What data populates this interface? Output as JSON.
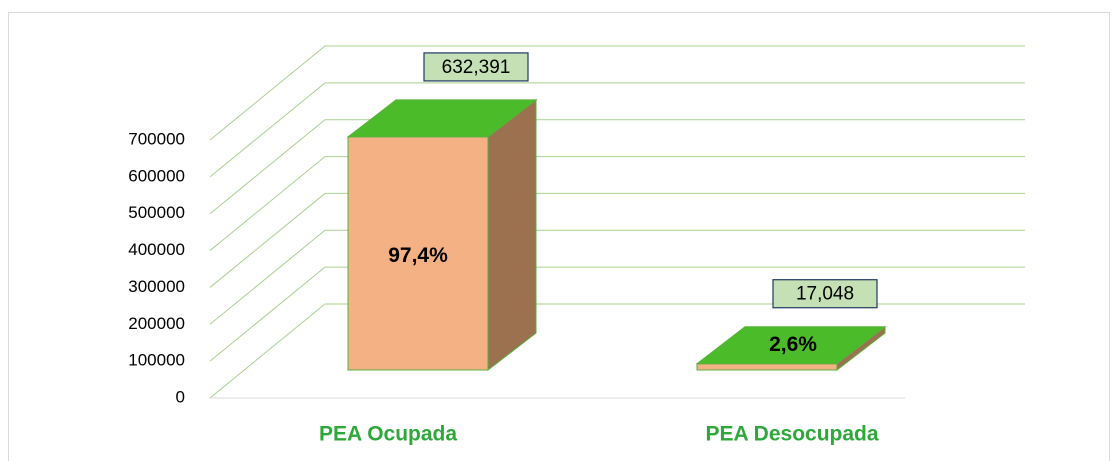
{
  "chart_data": {
    "type": "bar3d",
    "categories": [
      "PEA Ocupada",
      "PEA Desocupada"
    ],
    "values": [
      632391,
      17048
    ],
    "value_labels": [
      "632,391",
      "17,048"
    ],
    "annotations": [
      "97,4%",
      "2,6%"
    ],
    "ylim": [
      0,
      700000
    ],
    "yticks": [
      0,
      100000,
      200000,
      300000,
      400000,
      500000,
      600000,
      700000
    ],
    "grid": true,
    "colors": {
      "front": "#f4b183",
      "side": "#9b7150",
      "top": "#4cbb2a"
    }
  }
}
